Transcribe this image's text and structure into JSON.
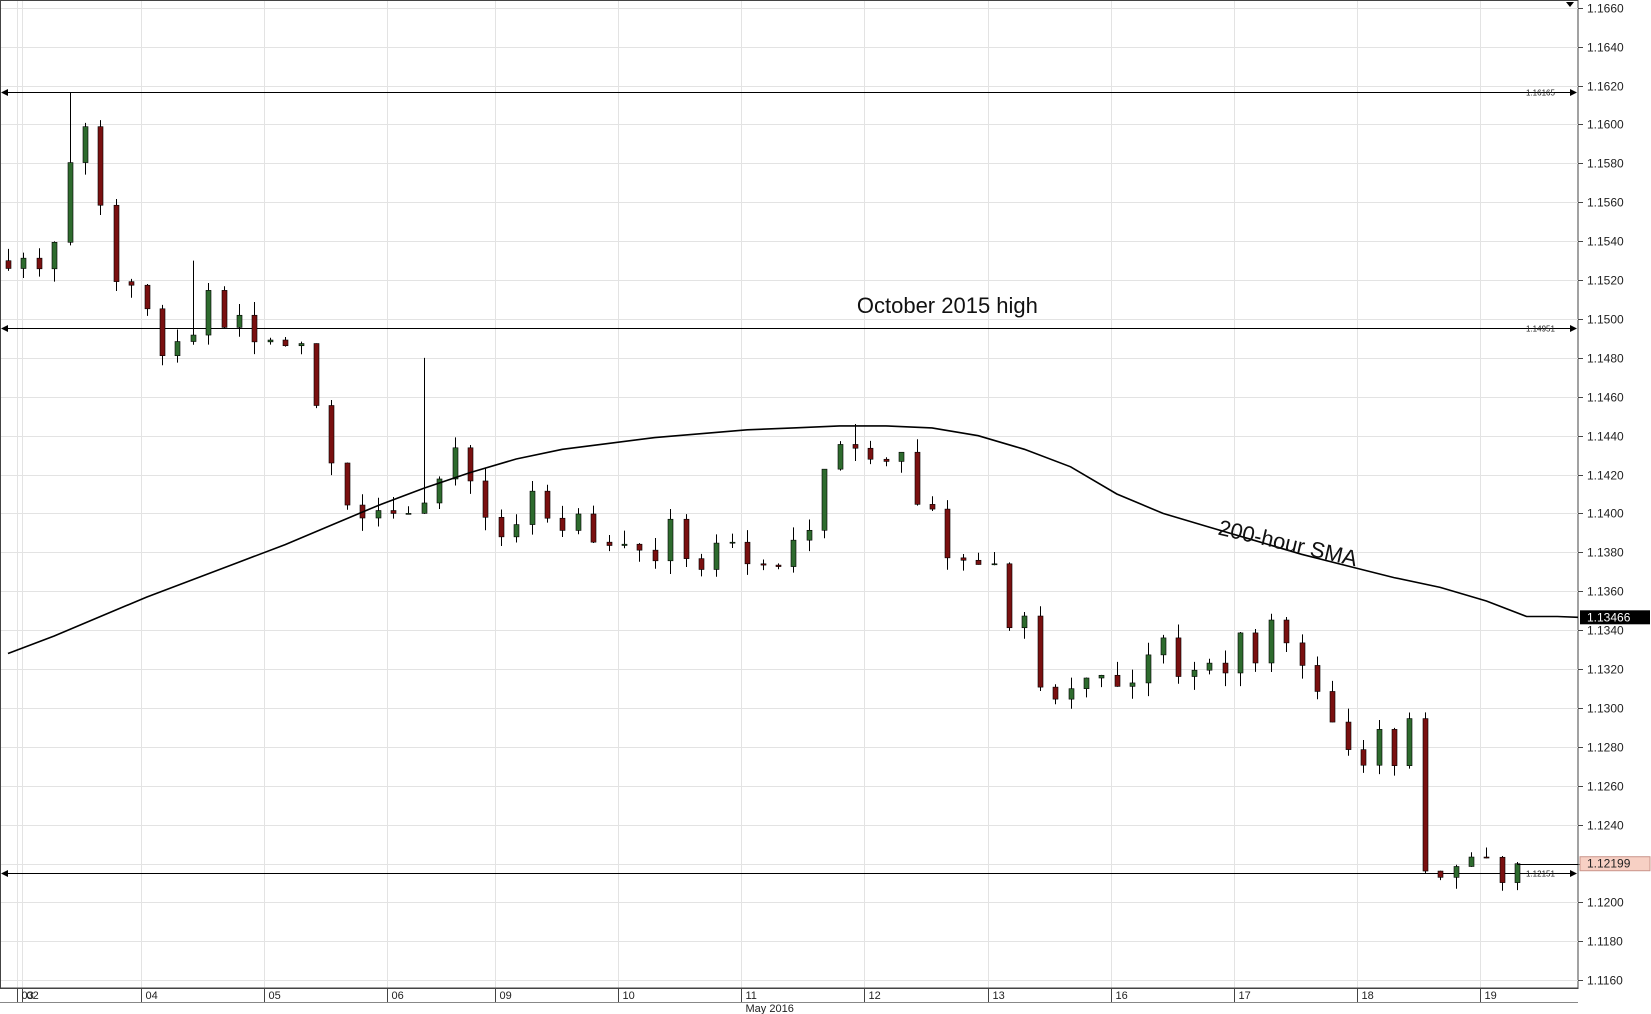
{
  "chart_data": {
    "type": "candlestick",
    "title": "",
    "xlabel": "",
    "ylabel": "",
    "ylim": [
      1.1156,
      1.1664
    ],
    "y_ticks": [
      "1.1660",
      "1.1640",
      "1.1620",
      "1.1600",
      "1.1580",
      "1.1560",
      "1.1540",
      "1.1520",
      "1.1500",
      "1.1480",
      "1.1460",
      "1.1440",
      "1.1420",
      "1.1400",
      "1.1380",
      "1.1360",
      "1.1340",
      "1.1320",
      "1.1300",
      "1.1280",
      "1.1260",
      "1.1240",
      "1.1220",
      "1.1200",
      "1.1180",
      "1.1160"
    ],
    "x_month_label": "May 2016",
    "days": [
      "02",
      "03",
      "04",
      "05",
      "06",
      "09",
      "10",
      "11",
      "12",
      "13",
      "16",
      "17",
      "18",
      "19"
    ],
    "grid": true,
    "colors": {
      "up": "#2e6b2e",
      "down": "#7a1010",
      "wick": "#000000",
      "sma": "#000000"
    },
    "horizontal_levels": [
      {
        "value": 1.16165,
        "label": "1.16165"
      },
      {
        "value": 1.14951,
        "label": "1.14951"
      },
      {
        "value": 1.12151,
        "label": "1.12151"
      }
    ],
    "sma": {
      "name": "200-hour SMA",
      "current": "1.13466",
      "points": [
        [
          0,
          1.1328
        ],
        [
          3,
          1.1337
        ],
        [
          6,
          1.1347
        ],
        [
          9,
          1.1357
        ],
        [
          12,
          1.1366
        ],
        [
          15,
          1.1375
        ],
        [
          18,
          1.1384
        ],
        [
          21,
          1.1394
        ],
        [
          24,
          1.1404
        ],
        [
          27,
          1.1413
        ],
        [
          30,
          1.1421
        ],
        [
          33,
          1.1428
        ],
        [
          36,
          1.1433
        ],
        [
          39,
          1.1436
        ],
        [
          42,
          1.1439
        ],
        [
          45,
          1.1441
        ],
        [
          48,
          1.1443
        ],
        [
          51,
          1.1444
        ],
        [
          54,
          1.1445
        ],
        [
          57,
          1.1445
        ],
        [
          60,
          1.1444
        ],
        [
          63,
          1.144
        ],
        [
          66,
          1.1433
        ],
        [
          69,
          1.1424
        ],
        [
          72,
          1.141
        ],
        [
          75,
          1.14
        ],
        [
          78,
          1.1393
        ],
        [
          81,
          1.1386
        ],
        [
          84,
          1.1379
        ],
        [
          87,
          1.1373
        ],
        [
          90,
          1.1367
        ],
        [
          93,
          1.1362
        ],
        [
          96,
          1.1355
        ],
        [
          99,
          1.1347
        ],
        [
          101,
          1.1347
        ]
      ]
    },
    "current_price": "1.12199",
    "annotations": [
      {
        "text": "October 2015 high",
        "x": 61,
        "y": 1.1503,
        "rotate": 0
      },
      {
        "text": "200-hour SMA",
        "x": 83,
        "y": 1.1381,
        "rotate": 13
      }
    ],
    "anchors": [
      [
        0,
        1.1525
      ],
      [
        2,
        1.1528
      ],
      [
        3,
        1.1535
      ],
      [
        4,
        1.158
      ],
      [
        5,
        1.16
      ],
      [
        6,
        1.156
      ],
      [
        7,
        1.152
      ],
      [
        8,
        1.1515
      ],
      [
        9,
        1.15
      ],
      [
        10,
        1.148
      ],
      [
        11,
        1.149
      ],
      [
        12,
        1.1495
      ],
      [
        13,
        1.151
      ],
      [
        14,
        1.1495
      ],
      [
        15,
        1.15
      ],
      [
        16,
        1.149
      ],
      [
        17,
        1.1488
      ],
      [
        19,
        1.149
      ],
      [
        20,
        1.146
      ],
      [
        21,
        1.143
      ],
      [
        22,
        1.14
      ],
      [
        23,
        1.1403
      ],
      [
        25,
        1.1402
      ],
      [
        27,
        1.1405
      ],
      [
        28,
        1.142
      ],
      [
        29,
        1.143
      ],
      [
        30,
        1.142
      ],
      [
        31,
        1.1395
      ],
      [
        32,
        1.1385
      ],
      [
        33,
        1.14
      ],
      [
        34,
        1.141
      ],
      [
        35,
        1.14
      ],
      [
        36,
        1.139
      ],
      [
        37,
        1.14
      ],
      [
        38,
        1.1385
      ],
      [
        40,
        1.138
      ],
      [
        42,
        1.1378
      ],
      [
        43,
        1.1395
      ],
      [
        44,
        1.1375
      ],
      [
        45,
        1.137
      ],
      [
        46,
        1.139
      ],
      [
        47,
        1.138
      ],
      [
        48,
        1.137
      ],
      [
        50,
        1.1375
      ],
      [
        51,
        1.1385
      ],
      [
        52,
        1.1395
      ],
      [
        53,
        1.142
      ],
      [
        54,
        1.144
      ],
      [
        55,
        1.143
      ],
      [
        56,
        1.1425
      ],
      [
        58,
        1.1427
      ],
      [
        59,
        1.141
      ],
      [
        60,
        1.1405
      ],
      [
        61,
        1.138
      ],
      [
        62,
        1.1375
      ],
      [
        64,
        1.1374
      ],
      [
        65,
        1.1345
      ],
      [
        66,
        1.135
      ],
      [
        67,
        1.131
      ],
      [
        68,
        1.13
      ],
      [
        70,
        1.1315
      ],
      [
        72,
        1.1308
      ],
      [
        74,
        1.1325
      ],
      [
        75,
        1.1335
      ],
      [
        76,
        1.132
      ],
      [
        77,
        1.1318
      ],
      [
        79,
        1.1318
      ],
      [
        80,
        1.1335
      ],
      [
        81,
        1.132
      ],
      [
        82,
        1.134
      ],
      [
        83,
        1.133
      ],
      [
        84,
        1.1318
      ],
      [
        85,
        1.1312
      ],
      [
        86,
        1.129
      ],
      [
        87,
        1.1275
      ],
      [
        88,
        1.127
      ],
      [
        89,
        1.1285
      ],
      [
        90,
        1.127
      ],
      [
        91,
        1.129
      ],
      [
        92,
        1.122
      ],
      [
        93,
        1.1218
      ],
      [
        95,
        1.1225
      ],
      [
        96,
        1.1222
      ],
      [
        97,
        1.1212
      ],
      [
        98,
        1.1219
      ]
    ]
  }
}
